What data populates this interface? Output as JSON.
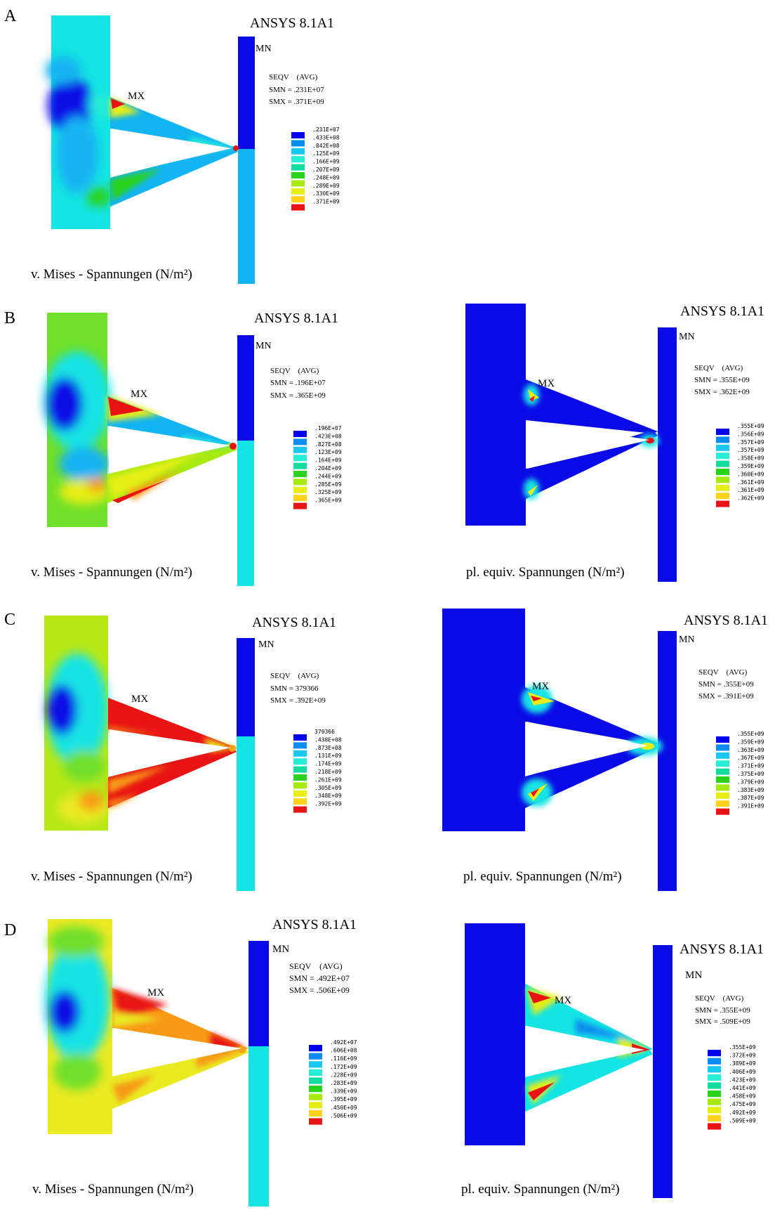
{
  "colors": {
    "scale": [
      "#0000ee",
      "#0a8cf0",
      "#18c8ee",
      "#28eed8",
      "#10dca0",
      "#2ad21a",
      "#a6ea12",
      "#e6ee14",
      "#ffd21c",
      "#f89a18",
      "#e81414"
    ],
    "cyan_bg": "#14e4e4",
    "light_blue": "#12b4f2",
    "deep_blue": "#0a0ae6",
    "green_bg": "#70e02a",
    "lime_bg": "#b6e818",
    "yellow_bg": "#eaea22",
    "red": "#e81414",
    "orange": "#f4a21c"
  },
  "panels": [
    {
      "label": "A",
      "left": {
        "title": "ANSYS 8.1A1",
        "mn": "MN",
        "mx": "MX",
        "seqv": "SEQV    (AVG)",
        "smn": "SMN  = .231E+07",
        "smx": "SMX = .371E+09",
        "legend": [
          ".231E+07",
          ".433E+08",
          ".842E+08",
          ".125E+09",
          ".166E+09",
          ".207E+09",
          ".248E+09",
          ".289E+09",
          ".330E+09",
          ".371E+09"
        ],
        "caption": "v. Mises - Spannungen (N/m²)"
      }
    },
    {
      "label": "B",
      "left": {
        "title": "ANSYS 8.1A1",
        "mn": "MN",
        "mx": "MX",
        "seqv": "SEQV    (AVG)",
        "smn": "SMN  = .196E+07",
        "smx": "SMX = .365E+09",
        "legend": [
          ".196E+07",
          ".423E+08",
          ".827E+08",
          ".123E+09",
          ".164E+09",
          ".204E+09",
          ".244E+09",
          ".285E+09",
          ".325E+09",
          ".365E+09"
        ],
        "caption": "v. Mises - Spannungen (N/m²)"
      },
      "right": {
        "title": "ANSYS 8.1A1",
        "mn": "MN",
        "mx": "MX",
        "seqv": "SEQV    (AVG)",
        "smn": "SMN  = .355E+09",
        "smx": "SMX = .362E+09",
        "legend": [
          ".355E+09",
          ".356E+09",
          ".357E+09",
          ".357E+09",
          ".358E+09",
          ".359E+09",
          ".360E+09",
          ".361E+09",
          ".361E+09",
          ".362E+09"
        ],
        "caption": "pl. equiv. Spannungen (N/m²)"
      }
    },
    {
      "label": "C",
      "left": {
        "title": "ANSYS 8.1A1",
        "mn": "MN",
        "mx": "MX",
        "seqv": "SEQV    (AVG)",
        "smn": "SMN  = 379366",
        "smx": "SMX = .392E+09",
        "legend": [
          "379366",
          ".438E+08",
          ".873E+08",
          ".131E+09",
          ".174E+09",
          ".218E+09",
          ".261E+09",
          ".305E+09",
          ".348E+09",
          ".392E+09"
        ],
        "caption": "v. Mises - Spannungen (N/m²)"
      },
      "right": {
        "title": "ANSYS 8.1A1",
        "mn": "MN",
        "mx": "MX",
        "seqv": "SEQV    (AVG)",
        "smn": "SMN  = .355E+09",
        "smx": "SMX = .391E+09",
        "legend": [
          ".355E+09",
          ".359E+09",
          ".363E+09",
          ".367E+09",
          ".371E+09",
          ".375E+09",
          ".379E+09",
          ".383E+09",
          ".387E+09",
          ".391E+09"
        ],
        "caption": "pl. equiv. Spannungen (N/m²)"
      }
    },
    {
      "label": "D",
      "left": {
        "title": "ANSYS 8.1A1",
        "mn": "MN",
        "mx": "MX",
        "seqv": "SEQV    (AVG)",
        "smn": "SMN  = .492E+07",
        "smx": "SMX = .506E+09",
        "legend": [
          ".492E+07",
          ".606E+08",
          ".116E+09",
          ".172E+09",
          ".228E+09",
          ".283E+09",
          ".339E+09",
          ".395E+09",
          ".450E+09",
          ".506E+09"
        ],
        "caption": "v. Mises - Spannungen (N/m²)"
      },
      "right": {
        "title": "ANSYS 8.1A1",
        "mn": "MN",
        "mx": "MX",
        "seqv": "SEQV    (AVG)",
        "smn": "SMN  = .355E+09",
        "smx": "SMX = .509E+09",
        "legend": [
          ".355E+09",
          ".372E+09",
          ".389E+09",
          ".406E+09",
          ".423E+09",
          ".441E+09",
          ".458E+09",
          ".475E+09",
          ".492E+09",
          ".509E+09"
        ],
        "caption": "pl. equiv. Spannungen (N/m²)"
      }
    }
  ]
}
